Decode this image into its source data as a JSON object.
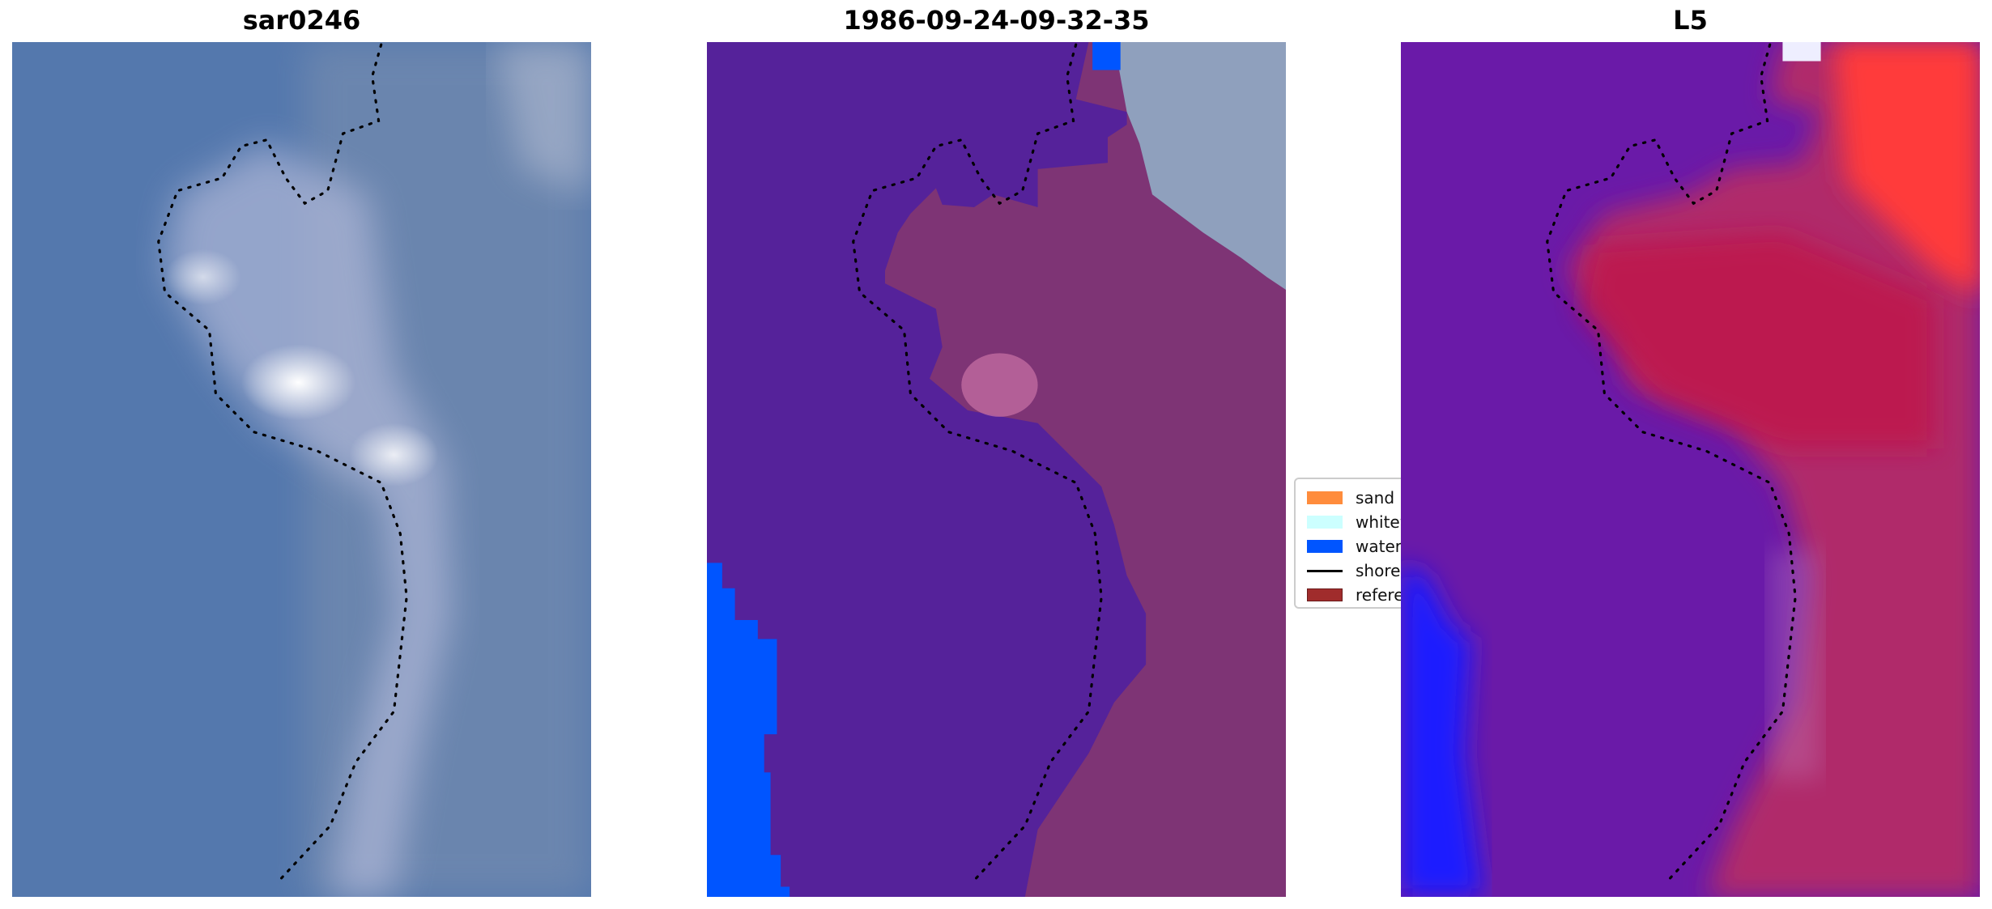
{
  "panels": [
    {
      "title": "sar0246",
      "type": "rgb-image"
    },
    {
      "title": "1986-09-24-09-32-35",
      "type": "classified-image"
    },
    {
      "title": "L5",
      "type": "index-image"
    }
  ],
  "legend": {
    "items": [
      {
        "label": "sand",
        "color": "#ff8c3c",
        "kind": "patch"
      },
      {
        "label": "whitew",
        "color": "#ccffff",
        "kind": "patch"
      },
      {
        "label": "water",
        "color": "#0055ff",
        "kind": "patch"
      },
      {
        "label": "shorel",
        "color": "#000000",
        "kind": "line"
      },
      {
        "label": "referer",
        "color": "#a02c2c",
        "kind": "patch"
      }
    ]
  },
  "colors": {
    "classified_background": "#55229a",
    "classified_land": "#7e3475",
    "water": "#0055ff",
    "index_low": "#6a1aa8",
    "index_high": "#c0184a"
  }
}
